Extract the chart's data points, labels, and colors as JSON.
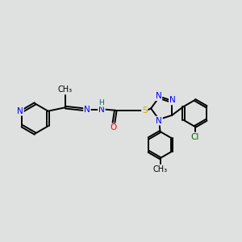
{
  "bg_color": "#dfe0e0",
  "bond_color": "#000000",
  "bond_width": 1.4,
  "atom_colors": {
    "N": "#0000ff",
    "O": "#ff0000",
    "S": "#ccaa00",
    "Cl": "#006400",
    "C": "#000000",
    "H": "#006666"
  },
  "font_size": 7.5,
  "fig_size": [
    3.0,
    3.0
  ],
  "dpi": 100
}
